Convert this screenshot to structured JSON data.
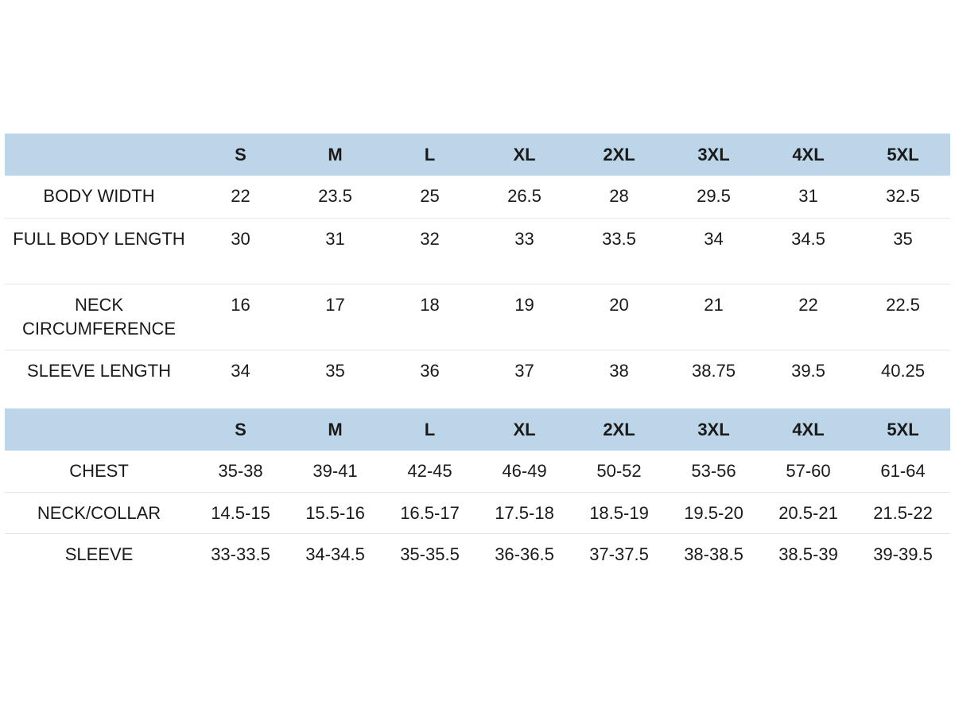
{
  "colors": {
    "header_bg": "#bcd5e8",
    "row_divider": "#e4e4e4",
    "text": "#1a1a1a"
  },
  "sizes": [
    "S",
    "M",
    "L",
    "XL",
    "2XL",
    "3XL",
    "4XL",
    "5XL"
  ],
  "measurements_table": {
    "rows": [
      {
        "label": "BODY WIDTH",
        "values": [
          "22",
          "23.5",
          "25",
          "26.5",
          "28",
          "29.5",
          "31",
          "32.5"
        ]
      },
      {
        "label": "FULL BODY LENGTH",
        "values": [
          "30",
          "31",
          "32",
          "33",
          "33.5",
          "34",
          "34.5",
          "35"
        ]
      },
      {
        "label": "NECK CIRCUMFERENCE",
        "values": [
          "16",
          "17",
          "18",
          "19",
          "20",
          "21",
          "22",
          "22.5"
        ]
      },
      {
        "label": "SLEEVE LENGTH",
        "values": [
          "34",
          "35",
          "36",
          "37",
          "38",
          "38.75",
          "39.5",
          "40.25"
        ]
      }
    ]
  },
  "body_fit_table": {
    "rows": [
      {
        "label": "CHEST",
        "values": [
          "35-38",
          "39-41",
          "42-45",
          "46-49",
          "50-52",
          "53-56",
          "57-60",
          "61-64"
        ]
      },
      {
        "label": "NECK/COLLAR",
        "values": [
          "14.5-15",
          "15.5-16",
          "16.5-17",
          "17.5-18",
          "18.5-19",
          "19.5-20",
          "20.5-21",
          "21.5-22"
        ]
      },
      {
        "label": "SLEEVE",
        "values": [
          "33-33.5",
          "34-34.5",
          "35-35.5",
          "36-36.5",
          "37-37.5",
          "38-38.5",
          "38.5-39",
          "39-39.5"
        ]
      }
    ]
  }
}
